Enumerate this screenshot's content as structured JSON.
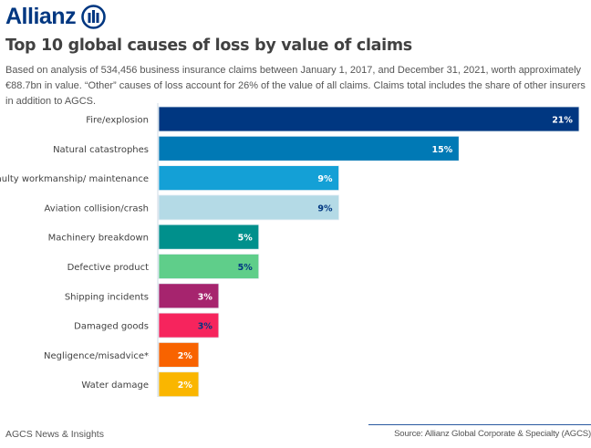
{
  "header": {
    "logo_text": "Allianz",
    "title": "Top 10 global causes of loss by value of claims",
    "description": "Based on analysis of 534,456 business insurance claims between January 1, 2017, and December 31, 2021, worth approximately €88.7bn in value. “Other” causes of loss account for 26% of the value of all claims. Claims total includes the share of other insurers in addition to AGCS."
  },
  "footer": {
    "left": "AGCS News & Insights",
    "right": "Source: Allianz Global Corporate & Specialty (AGCS)"
  },
  "chart_data": {
    "type": "bar",
    "orientation": "horizontal",
    "title": "Top 10 global causes of loss by value of claims",
    "unit": "%",
    "categories": [
      "Fire/explosion",
      "Natural catastrophes",
      "Faulty workmanship/ maintenance",
      "Aviation collision/crash",
      "Machinery breakdown",
      "Defective product",
      "Shipping incidents",
      "Damaged goods",
      "Negligence/misadvice*",
      "Water damage"
    ],
    "values": [
      21,
      15,
      9,
      9,
      5,
      5,
      3,
      3,
      2,
      2
    ],
    "data_labels": [
      "21%",
      "15%",
      "9%",
      "9%",
      "5%",
      "5%",
      "3%",
      "3%",
      "2%",
      "2%"
    ],
    "colors": [
      "#003781",
      "#0079b5",
      "#14a0d6",
      "#b4dae6",
      "#00908c",
      "#5fce8a",
      "#a6246e",
      "#f6245d",
      "#f86300",
      "#fab600"
    ],
    "label_colors": [
      "#ffffff",
      "#ffffff",
      "#ffffff",
      "#003781",
      "#ffffff",
      "#003781",
      "#ffffff",
      "#003781",
      "#ffffff",
      "#ffffff"
    ],
    "grid": false,
    "legend": "none"
  }
}
